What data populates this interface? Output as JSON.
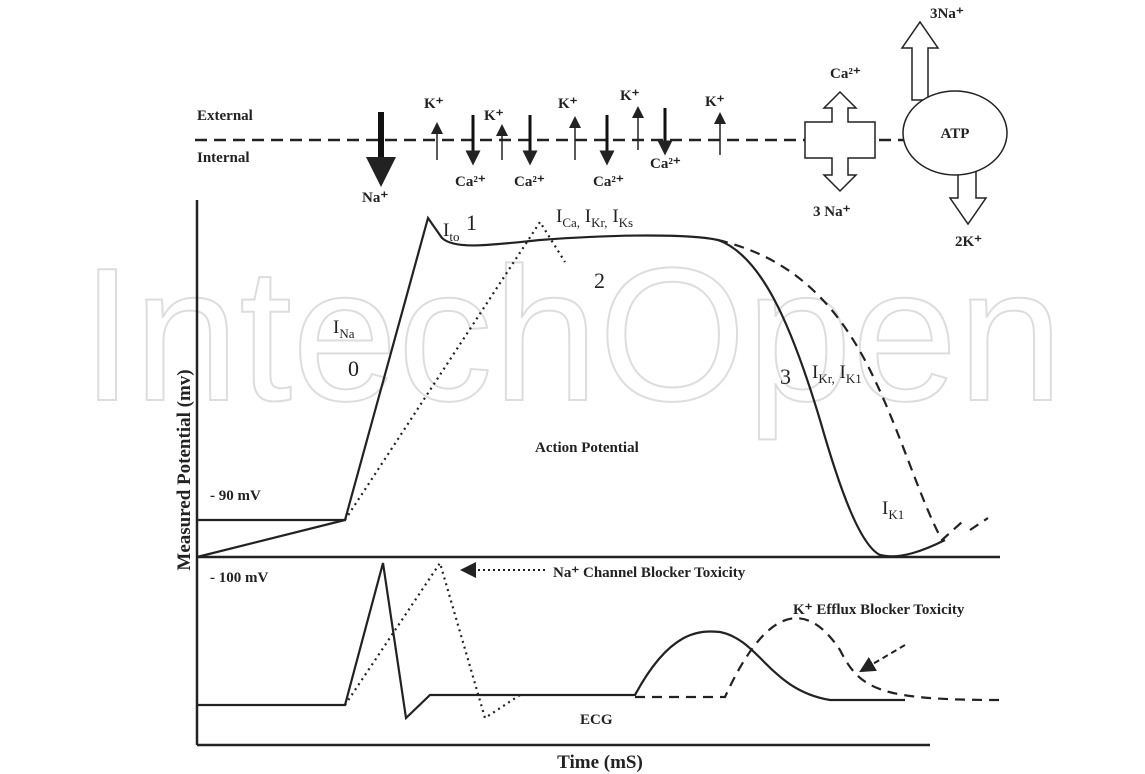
{
  "watermark": "IntechOpen",
  "membrane": {
    "external": "External",
    "internal": "Internal"
  },
  "ions": [
    "Na⁺",
    "K⁺",
    "Ca²⁺",
    "K⁺",
    "Ca²⁺",
    "K⁺",
    "K⁺",
    "Ca²⁺",
    "Ca²⁺",
    "K⁺"
  ],
  "exchanger": {
    "top": "Ca²⁺",
    "bottom": "3 Na⁺"
  },
  "pump": {
    "label": "ATP",
    "top": "3Na⁺",
    "bottom": "2K⁺"
  },
  "currents": [
    [
      "I",
      "Na"
    ],
    [
      "I",
      "to"
    ],
    [
      "I",
      "Ca,",
      " I",
      "Kr,",
      " I",
      "Ks"
    ],
    [
      "I",
      "Kr,",
      " I",
      "K1"
    ],
    [
      "I",
      "K1"
    ]
  ],
  "phases": [
    "0",
    "1",
    "2",
    "3"
  ],
  "annotations": {
    "action_potential": "Action Potential",
    "resting": "- 90 mV",
    "threshold": "- 100 mV",
    "na_block": "Na⁺ Channel Blocker Toxicity",
    "k_block": "K⁺ Efflux Blocker Toxicity",
    "ecg": "ECG"
  },
  "axes": {
    "y_label": "Measured Potential (mv)",
    "x_label": "Time (mS)"
  }
}
